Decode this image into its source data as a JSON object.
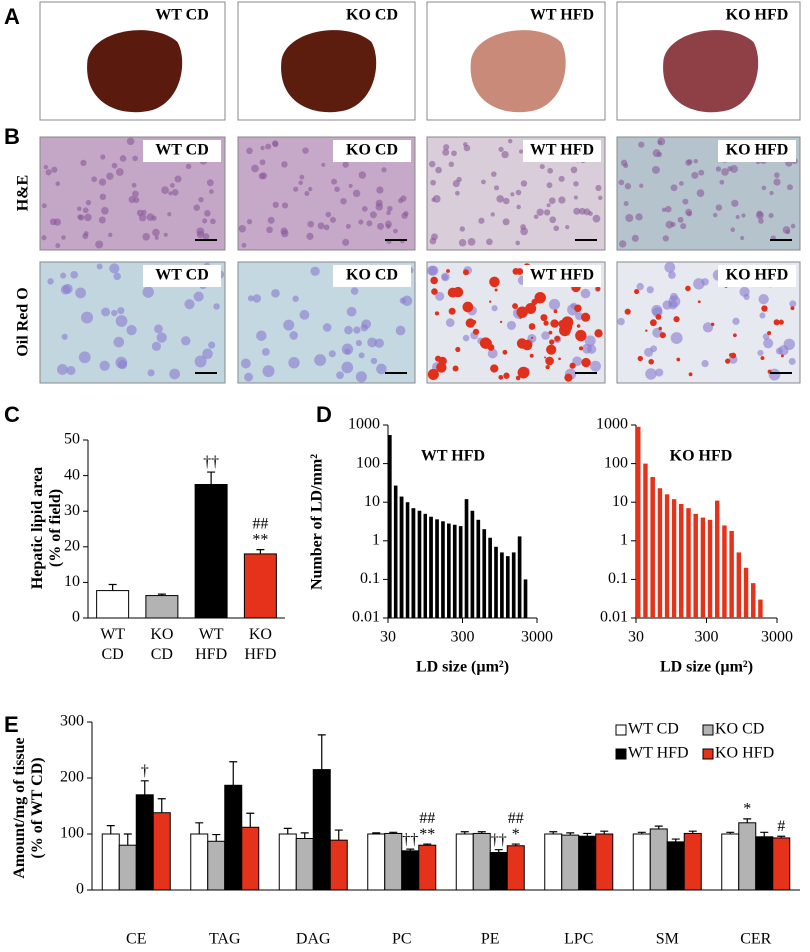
{
  "panel_labels": [
    "A",
    "B",
    "C",
    "D",
    "E"
  ],
  "photos": {
    "columns": [
      "WT CD",
      "KO CD",
      "WT HFD",
      "KO HFD"
    ],
    "rows": [
      "H&E",
      "Oil Red O"
    ]
  },
  "chart_data": [
    {
      "type": "bar",
      "ylabel": [
        "Hepatic lipid area",
        "(% of field)"
      ],
      "categories": [
        "WT CD",
        "KO CD",
        "WT HFD",
        "KO HFD"
      ],
      "values": [
        7.7,
        6.3,
        37.5,
        18
      ],
      "errors": [
        1.7,
        0.4,
        3.5,
        1.2
      ],
      "colors": [
        "#ffffff",
        "#b3b3b3",
        "#000000",
        "#e5321b"
      ],
      "annotations": [
        [],
        [],
        [
          "††"
        ],
        [
          "##",
          "**"
        ]
      ],
      "ylim": [
        0,
        50
      ],
      "yticks": [
        0,
        10,
        20,
        30,
        40,
        50
      ]
    },
    {
      "type": "histogram",
      "title": "WT HFD",
      "ylabel": "Number of LD/mm²",
      "xlabel": "LD size (µm²)",
      "bins": [
        30,
        36,
        43,
        52,
        62,
        75,
        90,
        107,
        129,
        155,
        186,
        223,
        268,
        321,
        385,
        462,
        555,
        666,
        799,
        958,
        1150,
        1380,
        1656,
        1988,
        2385
      ],
      "values": [
        550,
        27,
        14,
        10,
        7,
        6,
        5,
        4.2,
        3.6,
        3.2,
        2.8,
        2.6,
        2.4,
        12,
        6,
        3.5,
        2,
        1.2,
        0.7,
        0.5,
        0.4,
        0.5,
        1.3,
        0.1
      ],
      "color": "#000000",
      "log_x": true,
      "log_y": true,
      "xlim": [
        30,
        3000
      ],
      "xticks": [
        30,
        300,
        3000
      ],
      "ylim": [
        0.01,
        1000
      ],
      "yticks": [
        0.01,
        0.1,
        1,
        10,
        100,
        1000
      ]
    },
    {
      "type": "histogram",
      "title": "KO HFD",
      "xlabel": "LD size (µm²)",
      "bins": [
        30,
        38,
        48,
        61,
        77,
        97,
        122,
        155,
        196,
        248,
        313,
        396,
        501,
        634,
        802,
        1014,
        1283,
        1623,
        2053
      ],
      "values": [
        900,
        100,
        45,
        23,
        16,
        12,
        9,
        7,
        5,
        4,
        3.5,
        11,
        2.5,
        1.8,
        0.5,
        0.2,
        0.08,
        0.03
      ],
      "color": "#e5321b",
      "log_x": true,
      "log_y": true,
      "xlim": [
        30,
        3000
      ],
      "xticks": [
        30,
        300,
        3000
      ],
      "ylim": [
        0.01,
        1000
      ],
      "yticks": [
        0.01,
        0.1,
        1,
        10,
        100,
        1000
      ]
    },
    {
      "type": "grouped_bar",
      "ylabel": [
        "Amount/mg of tissue",
        "(% of WT CD)"
      ],
      "categories": [
        "CE",
        "TAG",
        "DAG",
        "PC",
        "PE",
        "LPC",
        "SM",
        "CER"
      ],
      "series": [
        {
          "name": "WT CD",
          "color": "#ffffff",
          "values": [
            100,
            100,
            100,
            100,
            100,
            100,
            100,
            100
          ],
          "errors": [
            15,
            20,
            10,
            2,
            4,
            4,
            3,
            3
          ],
          "annotations": [
            [],
            [],
            [],
            [],
            [],
            [],
            [],
            []
          ]
        },
        {
          "name": "KO CD",
          "color": "#b3b3b3",
          "values": [
            80,
            87,
            92,
            101,
            101,
            98,
            109,
            120
          ],
          "errors": [
            20,
            12,
            10,
            2,
            3,
            4,
            5,
            7
          ],
          "annotations": [
            [],
            [],
            [],
            [],
            [],
            [],
            [],
            [
              "*"
            ]
          ]
        },
        {
          "name": "WT HFD",
          "color": "#000000",
          "values": [
            170,
            187,
            215,
            70,
            67,
            96,
            86,
            95
          ],
          "errors": [
            25,
            42,
            62,
            3,
            5,
            5,
            5,
            8
          ],
          "annotations": [
            [
              "†"
            ],
            [],
            [],
            [
              "††"
            ],
            [
              "††"
            ],
            [],
            [],
            []
          ]
        },
        {
          "name": "KO HFD",
          "color": "#e5321b",
          "values": [
            138,
            112,
            89,
            80,
            79,
            100,
            101,
            93
          ],
          "errors": [
            25,
            25,
            18,
            2,
            3,
            5,
            4,
            3
          ],
          "annotations": [
            [],
            [],
            [],
            [
              "##",
              "**"
            ],
            [
              "##",
              "*"
            ],
            [],
            [],
            [
              "#"
            ]
          ]
        }
      ],
      "ylim": [
        0,
        300
      ],
      "yticks": [
        0,
        100,
        200,
        300
      ],
      "legend": "top-right"
    }
  ]
}
